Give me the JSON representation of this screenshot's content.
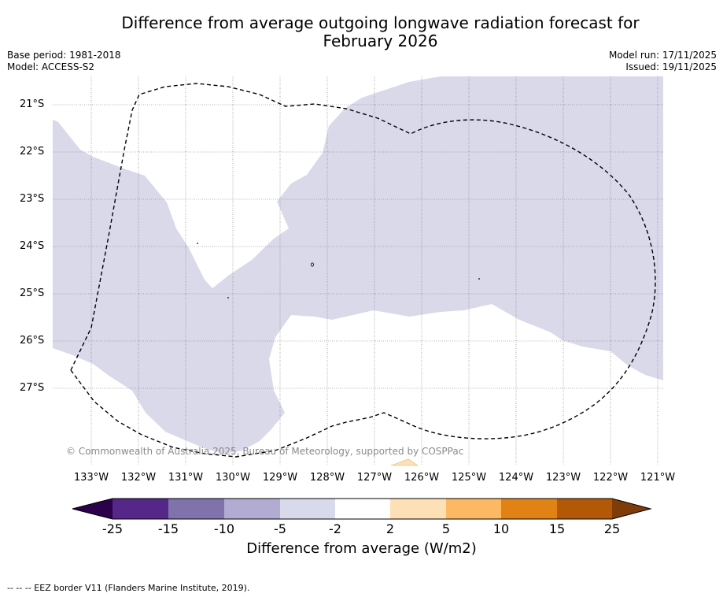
{
  "title": {
    "line1": "Difference from average outgoing longwave radiation forecast for",
    "line2": "February 2026"
  },
  "meta": {
    "base_period": "Base period: 1981-2018",
    "model": "Model: ACCESS-S2",
    "model_run": "Model run: 17/11/2025",
    "issued": "Issued: 19/11/2025"
  },
  "map": {
    "latitude_labels": [
      "21°S",
      "22°S",
      "23°S",
      "24°S",
      "25°S",
      "26°S",
      "27°S"
    ],
    "longitude_labels": [
      "133°W",
      "132°W",
      "131°W",
      "130°W",
      "129°W",
      "128°W",
      "127°W",
      "126°W",
      "125°W",
      "124°W",
      "123°W",
      "122°W",
      "121°W"
    ],
    "copyright": "© Commonwealth of Australia 2025, Bureau of Meteorology, supported by COSPPac",
    "colors": {
      "slightly_below": "#d9d9ea",
      "border_dash": "#000000",
      "grid": "#777777",
      "slightly_above": "#fee0b6"
    },
    "eez_border_name": "EEZ border"
  },
  "colorbar": {
    "ticks": [
      "-25",
      "-15",
      "-10",
      "-5",
      "-2",
      "2",
      "5",
      "10",
      "15",
      "25"
    ],
    "colors": [
      "#2d004b",
      "#542788",
      "#8073ac",
      "#b2abd2",
      "#d8daeb",
      "#ffffff",
      "#fee0b6",
      "#fdb863",
      "#e08214",
      "#b35806",
      "#7f3b08"
    ],
    "title": "Difference from average (W/m2)"
  },
  "legend": {
    "text": "--  --  -- EEZ border V11 (Flanders Marine Institute, 2019)."
  }
}
